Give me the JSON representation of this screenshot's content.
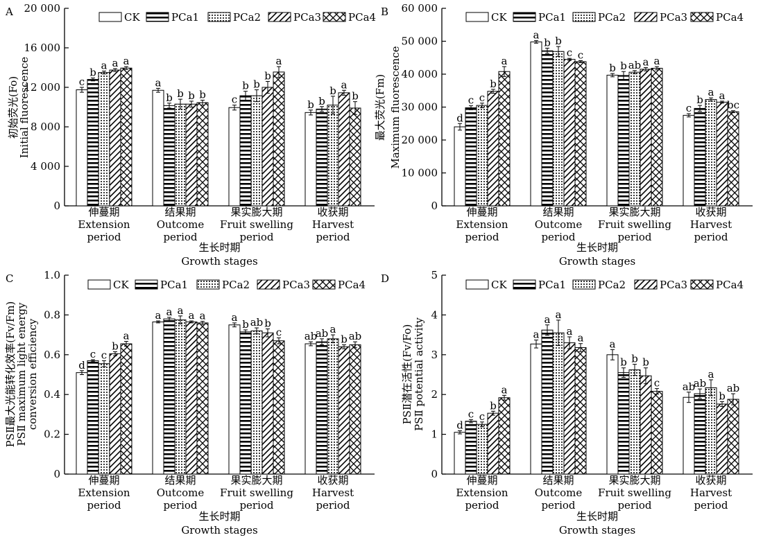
{
  "chart_data": [
    {
      "type": "bar",
      "panel": "A",
      "categories": [
        {
          "zh": "伸蔓期",
          "en1": "Extension",
          "en2": "period"
        },
        {
          "zh": "结果期",
          "en1": "Outcome",
          "en2": "period"
        },
        {
          "zh": "果实膨大期",
          "en1": "Fruit swelling",
          "en2": "period"
        },
        {
          "zh": "收获期",
          "en1": "Harvest",
          "en2": "period"
        }
      ],
      "ylabel_zh": "初始荧光(Fo)",
      "ylabel_en": [
        "Initial fluorescence"
      ],
      "xlabel_zh": "生长时期",
      "xlabel_en": "Growth stages",
      "ylim": [
        0,
        20000
      ],
      "yticks": [
        0,
        4000,
        8000,
        12000,
        16000,
        20000
      ],
      "ytick_labels": [
        "0",
        "4 000",
        "8 000",
        "12 000",
        "16 000",
        "20 000"
      ],
      "series": [
        {
          "name": "CK",
          "values": [
            11750,
            11700,
            9950,
            9450
          ],
          "errors": [
            250,
            200,
            250,
            250
          ],
          "letters": [
            "c",
            "a",
            "c",
            "b"
          ]
        },
        {
          "name": "PCa1",
          "values": [
            12800,
            10150,
            11150,
            9800
          ],
          "errors": [
            150,
            250,
            450,
            250
          ],
          "letters": [
            "b",
            "b",
            "b",
            "b"
          ]
        },
        {
          "name": "PCa2",
          "values": [
            13500,
            10300,
            11150,
            10200
          ],
          "errors": [
            150,
            500,
            600,
            900
          ],
          "letters": [
            "a",
            "b",
            "b",
            "b"
          ]
        },
        {
          "name": "PCa3",
          "values": [
            13750,
            10300,
            12000,
            11450
          ],
          "errors": [
            150,
            300,
            600,
            250
          ],
          "letters": [
            "a",
            "b",
            "b",
            "a"
          ]
        },
        {
          "name": "PCa4",
          "values": [
            13950,
            10450,
            13550,
            9900
          ],
          "errors": [
            150,
            250,
            550,
            650
          ],
          "letters": [
            "a",
            "b",
            "a",
            "b"
          ]
        }
      ]
    },
    {
      "type": "bar",
      "panel": "B",
      "categories": [
        {
          "zh": "伸蔓期",
          "en1": "Extension",
          "en2": "period"
        },
        {
          "zh": "结果期",
          "en1": "Outcome",
          "en2": "period"
        },
        {
          "zh": "果实膨大期",
          "en1": "Fruit swelling",
          "en2": "period"
        },
        {
          "zh": "收获期",
          "en1": "Harvest",
          "en2": "period"
        }
      ],
      "ylabel_zh": "最大荧光(Fm)",
      "ylabel_en": [
        "Maximum fluorescence"
      ],
      "xlabel_zh": "生长时期",
      "xlabel_en": "Growth stages",
      "ylim": [
        0,
        60000
      ],
      "yticks": [
        0,
        10000,
        20000,
        30000,
        40000,
        50000,
        60000
      ],
      "ytick_labels": [
        "0",
        "10 000",
        "20 000",
        "30 000",
        "40 000",
        "50 000",
        "60 000"
      ],
      "series": [
        {
          "name": "CK",
          "values": [
            24000,
            49800,
            39700,
            27500
          ],
          "errors": [
            1000,
            400,
            500,
            500
          ],
          "letters": [
            "d",
            "a",
            "b",
            "c"
          ]
        },
        {
          "name": "PCa1",
          "values": [
            29800,
            47100,
            39600,
            29600
          ],
          "errors": [
            600,
            800,
            1200,
            900
          ],
          "letters": [
            "c",
            "b",
            "b",
            "b"
          ]
        },
        {
          "name": "PCa2",
          "values": [
            30500,
            46900,
            40600,
            32300
          ],
          "errors": [
            700,
            1500,
            500,
            500
          ],
          "letters": [
            "c",
            "b",
            "ab",
            "a"
          ]
        },
        {
          "name": "PCa3",
          "values": [
            34800,
            44500,
            41500,
            31500
          ],
          "errors": [
            600,
            300,
            500,
            300
          ],
          "letters": [
            "b",
            "c",
            "a",
            "a"
          ]
        },
        {
          "name": "PCa4",
          "values": [
            40800,
            43800,
            41800,
            28600
          ],
          "errors": [
            1500,
            300,
            500,
            300
          ],
          "letters": [
            "a",
            "c",
            "a",
            "bc"
          ]
        }
      ]
    },
    {
      "type": "bar",
      "panel": "C",
      "categories": [
        {
          "zh": "伸蔓期",
          "en1": "Extension",
          "en2": "period"
        },
        {
          "zh": "结果期",
          "en1": "Outcome",
          "en2": "period"
        },
        {
          "zh": "果实膨大期",
          "en1": "Fruit swelling",
          "en2": "period"
        },
        {
          "zh": "收获期",
          "en1": "Harvest",
          "en2": "period"
        }
      ],
      "ylabel_zh": "PSⅡ最大光能转化效率(Fv/Fm)",
      "ylabel_en": [
        "PSⅡ maximum light energy",
        "conversion efficiency"
      ],
      "xlabel_zh": "生长时期",
      "xlabel_en": "Growth stages",
      "ylim": [
        0,
        1.0
      ],
      "yticks": [
        0,
        0.2,
        0.4,
        0.6,
        0.8,
        1.0
      ],
      "ytick_labels": [
        "0",
        "0.2",
        "0.4",
        "0.6",
        "0.8",
        "1.0"
      ],
      "series": [
        {
          "name": "CK",
          "values": [
            0.51,
            0.765,
            0.75,
            0.655
          ],
          "errors": [
            0.01,
            0.005,
            0.01,
            0.01
          ],
          "letters": [
            "d",
            "a",
            "a",
            "ab"
          ]
        },
        {
          "name": "PCa1",
          "values": [
            0.57,
            0.78,
            0.715,
            0.665
          ],
          "errors": [
            0.005,
            0.008,
            0.01,
            0.015
          ],
          "letters": [
            "c",
            "a",
            "b",
            "ab"
          ]
        },
        {
          "name": "PCa2",
          "values": [
            0.555,
            0.775,
            0.72,
            0.68
          ],
          "errors": [
            0.015,
            0.02,
            0.015,
            0.02
          ],
          "letters": [
            "c",
            "a",
            "ab",
            "a"
          ]
        },
        {
          "name": "PCa3",
          "values": [
            0.605,
            0.765,
            0.71,
            0.64
          ],
          "errors": [
            0.01,
            0.005,
            0.02,
            0.01
          ],
          "letters": [
            "b",
            "a",
            "b",
            "b"
          ]
        },
        {
          "name": "PCa4",
          "values": [
            0.655,
            0.76,
            0.67,
            0.65
          ],
          "errors": [
            0.012,
            0.008,
            0.015,
            0.015
          ],
          "letters": [
            "a",
            "a",
            "c",
            "ab"
          ]
        }
      ]
    },
    {
      "type": "bar",
      "panel": "D",
      "categories": [
        {
          "zh": "伸蔓期",
          "en1": "Extension",
          "en2": "period"
        },
        {
          "zh": "结果期",
          "en1": "Outcome",
          "en2": "period"
        },
        {
          "zh": "果实膨大期",
          "en1": "Fruit swelling",
          "en2": "period"
        },
        {
          "zh": "收获期",
          "en1": "Harvest",
          "en2": "period"
        }
      ],
      "ylabel_zh": "PSⅡ潜在活性(Fv/Fo)",
      "ylabel_en": [
        "PSⅡ potential activity"
      ],
      "xlabel_zh": "生长时期",
      "xlabel_en": "Growth stages",
      "ylim": [
        0,
        5
      ],
      "yticks": [
        0,
        1,
        2,
        3,
        4,
        5
      ],
      "ytick_labels": [
        "0",
        "1",
        "2",
        "3",
        "4",
        "5"
      ],
      "series": [
        {
          "name": "CK",
          "values": [
            1.05,
            3.27,
            3.0,
            1.93
          ],
          "errors": [
            0.04,
            0.1,
            0.13,
            0.13
          ],
          "letters": [
            "d",
            "a",
            "a",
            "ab"
          ]
        },
        {
          "name": "PCa1",
          "values": [
            1.33,
            3.62,
            2.55,
            2.02
          ],
          "errors": [
            0.04,
            0.13,
            0.12,
            0.12
          ],
          "letters": [
            "c",
            "a",
            "b",
            "ab"
          ]
        },
        {
          "name": "PCa2",
          "values": [
            1.25,
            3.55,
            2.62,
            2.17
          ],
          "errors": [
            0.06,
            0.32,
            0.14,
            0.2
          ],
          "letters": [
            "c",
            "a",
            "b",
            "a"
          ]
        },
        {
          "name": "PCa3",
          "values": [
            1.53,
            3.3,
            2.47,
            1.76
          ],
          "errors": [
            0.05,
            0.15,
            0.2,
            0.06
          ],
          "letters": [
            "b",
            "a",
            "b",
            "b"
          ]
        },
        {
          "name": "PCa4",
          "values": [
            1.92,
            3.18,
            2.08,
            1.88
          ],
          "errors": [
            0.06,
            0.1,
            0.07,
            0.14
          ],
          "letters": [
            "a",
            "a",
            "c",
            "ab"
          ]
        }
      ]
    }
  ]
}
